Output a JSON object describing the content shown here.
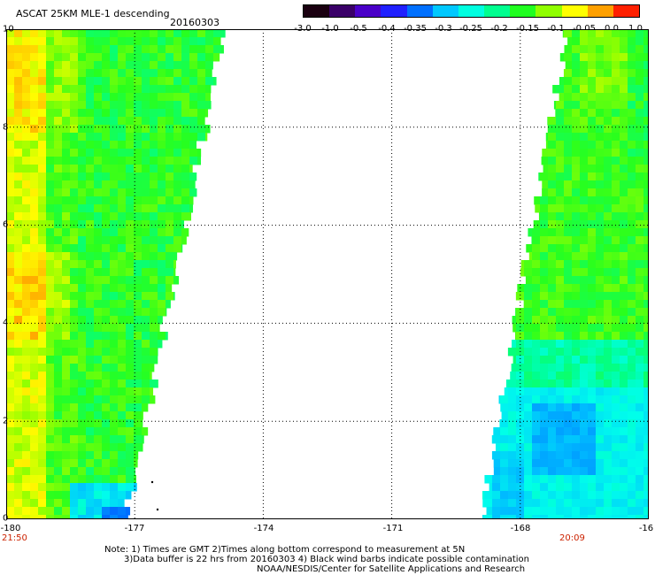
{
  "header": {
    "title": "ASCAT 25KM MLE-1 descending",
    "date": "20160303"
  },
  "colorbar": {
    "tick_labels": [
      "-3.0",
      "-1.0",
      "-0.5",
      "-0.4",
      "-0.35",
      "-0.3",
      "-0.25",
      "-0.2",
      "-0.15",
      "-0.1",
      "-0.05",
      "0.0",
      "1.0"
    ],
    "colors": [
      "#1a0010",
      "#3a0068",
      "#4a00c8",
      "#2020ff",
      "#0070ff",
      "#00c8ff",
      "#00ffe0",
      "#00ff90",
      "#20ff20",
      "#90ff00",
      "#ffff00",
      "#ffa000",
      "#ff2000"
    ]
  },
  "map": {
    "lon_labels": [
      "-180",
      "-177",
      "-174",
      "-171",
      "-168",
      "-16"
    ],
    "lat_labels": [
      "10",
      "8",
      "6",
      "4",
      "2",
      "0"
    ],
    "lon_range": [
      -180,
      -165
    ],
    "lat_range": [
      0,
      10
    ],
    "grid_lons": [
      -177,
      -174,
      -171,
      -168
    ],
    "grid_lats": [
      2,
      4,
      6,
      8
    ]
  },
  "times": {
    "left": "21:50",
    "right": "20:09"
  },
  "notes": {
    "line1": "Note: 1) Times are GMT 2)Times along bottom correspond to measurement at 5N",
    "line2": "3)Data buffer is 22 hrs from 20160303 4) Black wind barbs indicate possible contamination",
    "line3": "NOAA/NESDIS/Center for Satellite Applications and Research"
  },
  "colors": {
    "grid": "#000000",
    "time_label": "#cc2200"
  }
}
